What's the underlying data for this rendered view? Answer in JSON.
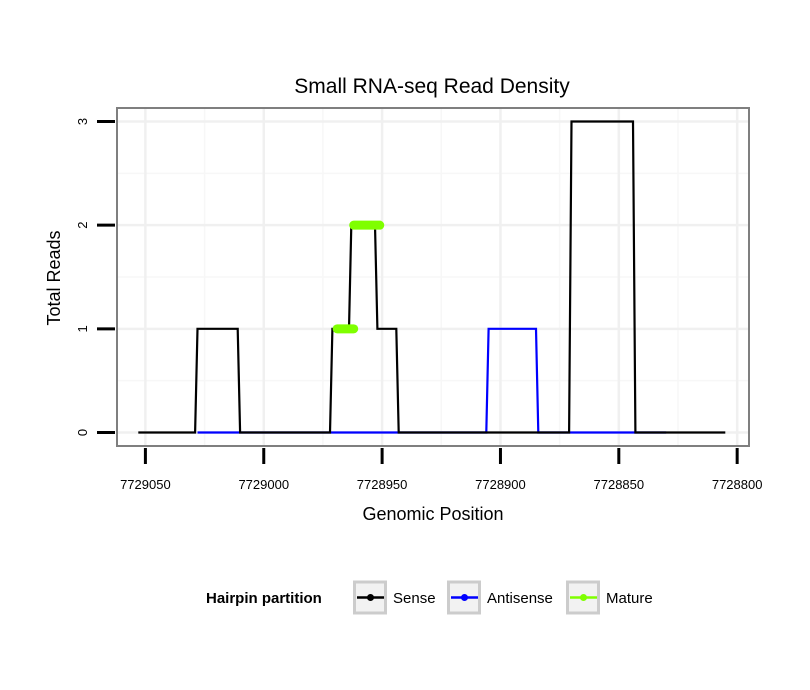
{
  "chart_data": {
    "type": "line",
    "title": "Small RNA-seq Read Density",
    "xlabel": "Genomic Position",
    "ylabel": "Total Reads",
    "xlim": [
      7729062,
      7728795
    ],
    "ylim": [
      -0.13,
      3.13
    ],
    "x_reversed": true,
    "x_ticks": [
      7729050,
      7729000,
      7728950,
      7728900,
      7728850,
      7728800
    ],
    "x_tick_labels": [
      "7729050",
      "7729000",
      "7728950",
      "7728900",
      "7728850",
      "7728800"
    ],
    "y_ticks": [
      0,
      1,
      2,
      3
    ],
    "y_tick_labels": [
      "0",
      "1",
      "2",
      "3"
    ],
    "grid": true,
    "legend": {
      "title": "Hairpin partition",
      "position": "bottom",
      "entries": [
        "Sense",
        "Antisense",
        "Mature"
      ]
    },
    "series": [
      {
        "name": "Sense",
        "color": "#000000",
        "x": [
          7729053,
          7729029,
          7729028,
          7729011,
          7729010,
          7728972,
          7728971,
          7728964,
          7728963,
          7728953,
          7728952,
          7728944,
          7728943,
          7728934,
          7728933,
          7728897,
          7728896,
          7728871,
          7728870,
          7728844,
          7728843,
          7728805
        ],
        "y": [
          0,
          0,
          1,
          1,
          0,
          0,
          1,
          1,
          2,
          2,
          1,
          1,
          0,
          0,
          0,
          0,
          0,
          0,
          3,
          3,
          0,
          0
        ]
      },
      {
        "name": "Antisense",
        "color": "#0000ff",
        "x": [
          7729028,
          7729010,
          7728935,
          7728906,
          7728905,
          7728885,
          7728884,
          7728870,
          7728843,
          7728830
        ],
        "y": [
          0,
          0,
          0,
          0,
          1,
          1,
          0,
          0,
          0,
          0
        ]
      },
      {
        "name": "Mature",
        "color": "#7fff00",
        "segments": [
          {
            "x": [
              7728969,
              7728962
            ],
            "y": [
              1,
              1
            ]
          },
          {
            "x": [
              7728962,
              7728951
            ],
            "y": [
              2,
              2
            ]
          }
        ]
      }
    ]
  }
}
